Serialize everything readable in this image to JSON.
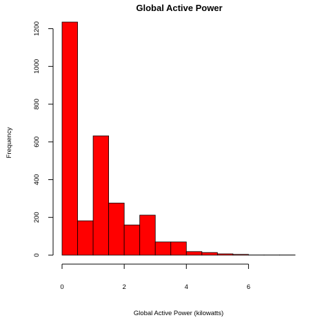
{
  "chart_data": {
    "type": "bar",
    "title": "Global Active Power",
    "xlabel": "Global Active Power (kilowatts)",
    "ylabel": "Frequency",
    "bar_color": "#FF0000",
    "bin_edges": [
      0,
      0.5,
      1.0,
      1.5,
      2.0,
      2.5,
      3.0,
      3.5,
      4.0,
      4.5,
      5.0,
      5.5,
      6.0,
      6.5,
      7.0,
      7.5
    ],
    "values": [
      1235,
      182,
      632,
      276,
      160,
      212,
      70,
      70,
      19,
      14,
      7,
      4,
      1,
      1,
      1
    ],
    "xlim": [
      0,
      7.5
    ],
    "ylim": [
      0,
      1235
    ],
    "x_ticks": [
      0,
      2,
      4,
      6
    ],
    "x_tick_labels": [
      "0",
      "2",
      "4",
      "6"
    ],
    "y_ticks": [
      0,
      200,
      400,
      600,
      800,
      1000,
      1200
    ],
    "y_tick_labels": [
      "0",
      "200",
      "400",
      "600",
      "800",
      "1000",
      "1200"
    ],
    "grid": false,
    "legend": "none"
  }
}
